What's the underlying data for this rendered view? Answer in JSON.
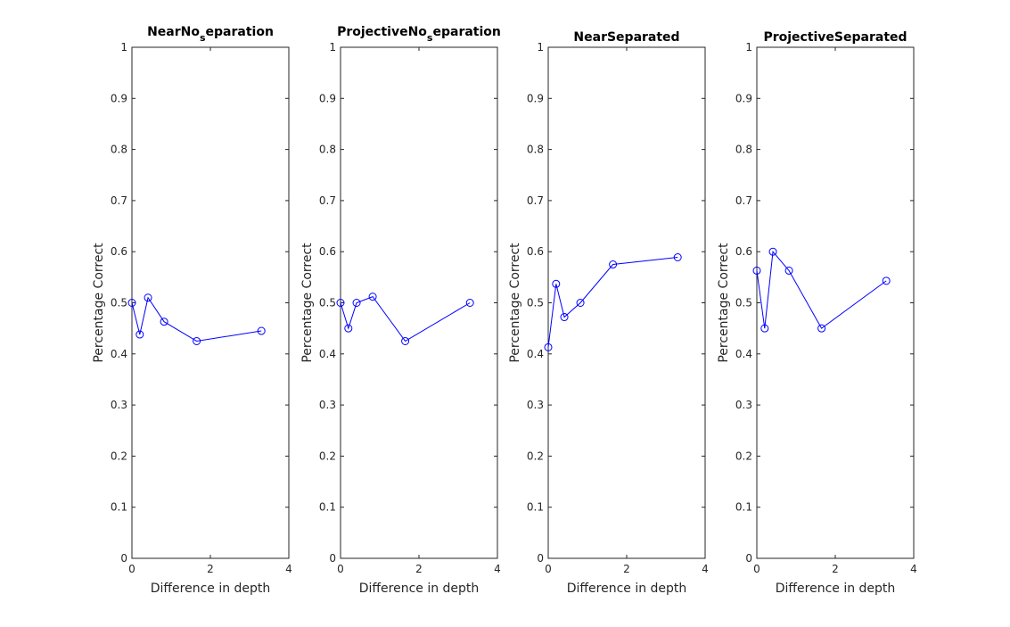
{
  "chart_data": [
    {
      "type": "line",
      "title": "NearNo",
      "title_sub": "s",
      "title_rest": "eparation",
      "xlabel": "Difference in depth",
      "ylabel": "Percentage Correct",
      "xlim": [
        0,
        4
      ],
      "ylim": [
        0,
        1
      ],
      "xticks": [
        "0",
        "2",
        "4"
      ],
      "yticks": [
        "0",
        "0.1",
        "0.2",
        "0.3",
        "0.4",
        "0.5",
        "0.6",
        "0.7",
        "0.8",
        "0.9",
        "1"
      ],
      "grid": false,
      "series": [
        {
          "x": [
            0,
            0.2,
            0.41,
            0.82,
            1.65,
            3.3
          ],
          "y": [
            0.5,
            0.438,
            0.51,
            0.463,
            0.425,
            0.445
          ]
        }
      ]
    },
    {
      "type": "line",
      "title": "ProjectiveNo",
      "title_sub": "s",
      "title_rest": "eparation",
      "xlabel": "Difference in depth",
      "ylabel": "Percentage Correct",
      "xlim": [
        0,
        4
      ],
      "ylim": [
        0,
        1
      ],
      "xticks": [
        "0",
        "2",
        "4"
      ],
      "yticks": [
        "0",
        "0.1",
        "0.2",
        "0.3",
        "0.4",
        "0.5",
        "0.6",
        "0.7",
        "0.8",
        "0.9",
        "1"
      ],
      "grid": false,
      "series": [
        {
          "x": [
            0,
            0.2,
            0.41,
            0.82,
            1.65,
            3.3
          ],
          "y": [
            0.5,
            0.45,
            0.5,
            0.512,
            0.425,
            0.5
          ]
        }
      ]
    },
    {
      "type": "line",
      "title": "NearSeparated",
      "xlabel": "Difference in depth",
      "ylabel": "Percentage Correct",
      "xlim": [
        0,
        4
      ],
      "ylim": [
        0,
        1
      ],
      "xticks": [
        "0",
        "2",
        "4"
      ],
      "yticks": [
        "0",
        "0.1",
        "0.2",
        "0.3",
        "0.4",
        "0.5",
        "0.6",
        "0.7",
        "0.8",
        "0.9",
        "1"
      ],
      "grid": false,
      "series": [
        {
          "x": [
            0,
            0.2,
            0.41,
            0.82,
            1.65,
            3.3
          ],
          "y": [
            0.413,
            0.537,
            0.472,
            0.5,
            0.575,
            0.589
          ]
        }
      ]
    },
    {
      "type": "line",
      "title": "ProjectiveSeparated",
      "xlabel": "Difference in depth",
      "ylabel": "Percentage Correct",
      "xlim": [
        0,
        4
      ],
      "ylim": [
        0,
        1
      ],
      "xticks": [
        "0",
        "2",
        "4"
      ],
      "yticks": [
        "0",
        "0.1",
        "0.2",
        "0.3",
        "0.4",
        "0.5",
        "0.6",
        "0.7",
        "0.8",
        "0.9",
        "1"
      ],
      "grid": false,
      "series": [
        {
          "x": [
            0,
            0.2,
            0.41,
            0.82,
            1.65,
            3.3
          ],
          "y": [
            0.563,
            0.45,
            0.6,
            0.563,
            0.45,
            0.543
          ]
        }
      ]
    }
  ],
  "colors": {
    "series": "#0000ff",
    "axes": "#262626",
    "background": "#ffffff"
  },
  "marker": "circle"
}
